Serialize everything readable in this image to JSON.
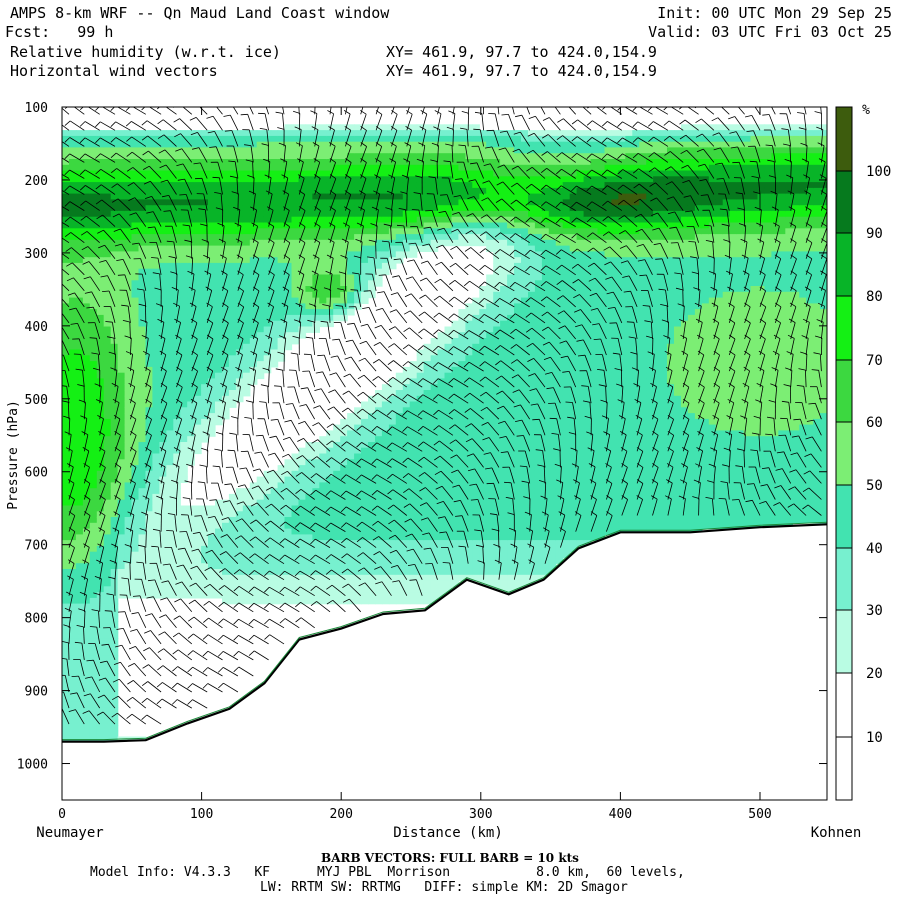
{
  "header": {
    "title": "AMPS 8-km WRF -- Qn Maud Land Coast window",
    "forecast": "Fcst:   99 h",
    "field1": "Relative humidity (w.r.t. ice)",
    "field2": "Horizontal wind vectors",
    "xy1": "XY= 461.9, 97.7 to 424.0,154.9",
    "xy2": "XY= 461.9, 97.7 to 424.0,154.9",
    "init": "Init: 00 UTC Mon 29 Sep 25",
    "valid": "Valid: 03 UTC Fri 03 Oct 25"
  },
  "footer": {
    "barb_note": "BARB VECTORS:  FULL BARB = 10 kts",
    "model_line1": "Model Info: V4.3.3   KF      MYJ PBL  Morrison           8.0 km,  60 levels,",
    "model_line2": "LW: RRTM SW: RRTMG   DIFF: simple KM: 2D Smagor"
  },
  "chart_data": {
    "type": "heatmap",
    "title": "Relative humidity (w.r.t. ice)",
    "xlabel": "Distance (km)",
    "ylabel": "Pressure (hPa)",
    "x_endpoints": {
      "left": "Neumayer",
      "right": "Kohnen"
    },
    "xlim": [
      0,
      548
    ],
    "ylim": [
      1050,
      100
    ],
    "x_ticks": [
      0,
      100,
      200,
      300,
      400,
      500
    ],
    "y_ticks": [
      100,
      200,
      300,
      400,
      500,
      600,
      700,
      800,
      900,
      1000
    ],
    "colorbar": {
      "unit": "%",
      "levels": [
        10,
        20,
        30,
        40,
        50,
        60,
        70,
        80,
        90,
        100
      ],
      "colors": [
        "#ffffff",
        "#ffffff",
        "#ffffff",
        "#b9fce3",
        "#77f0cf",
        "#42e3b0",
        "#7cee74",
        "#3cd840",
        "#14f014",
        "#08b428",
        "#067a1e",
        "#3d5c0d"
      ]
    },
    "terrain": [
      [
        0,
        970
      ],
      [
        30,
        970
      ],
      [
        60,
        968
      ],
      [
        90,
        945
      ],
      [
        120,
        925
      ],
      [
        145,
        890
      ],
      [
        170,
        830
      ],
      [
        200,
        815
      ],
      [
        230,
        795
      ],
      [
        260,
        790
      ],
      [
        290,
        748
      ],
      [
        320,
        768
      ],
      [
        345,
        748
      ],
      [
        370,
        705
      ],
      [
        400,
        683
      ],
      [
        450,
        683
      ],
      [
        500,
        676
      ],
      [
        548,
        672
      ]
    ],
    "rh_contour_levels_shown": [
      "0-30 white (lower troposphere near Neumayer and 220-280 km mid-levels)",
      "90-100+ dark green near 200-280 hPa above 280-460 km"
    ],
    "wind_barbs": true
  }
}
